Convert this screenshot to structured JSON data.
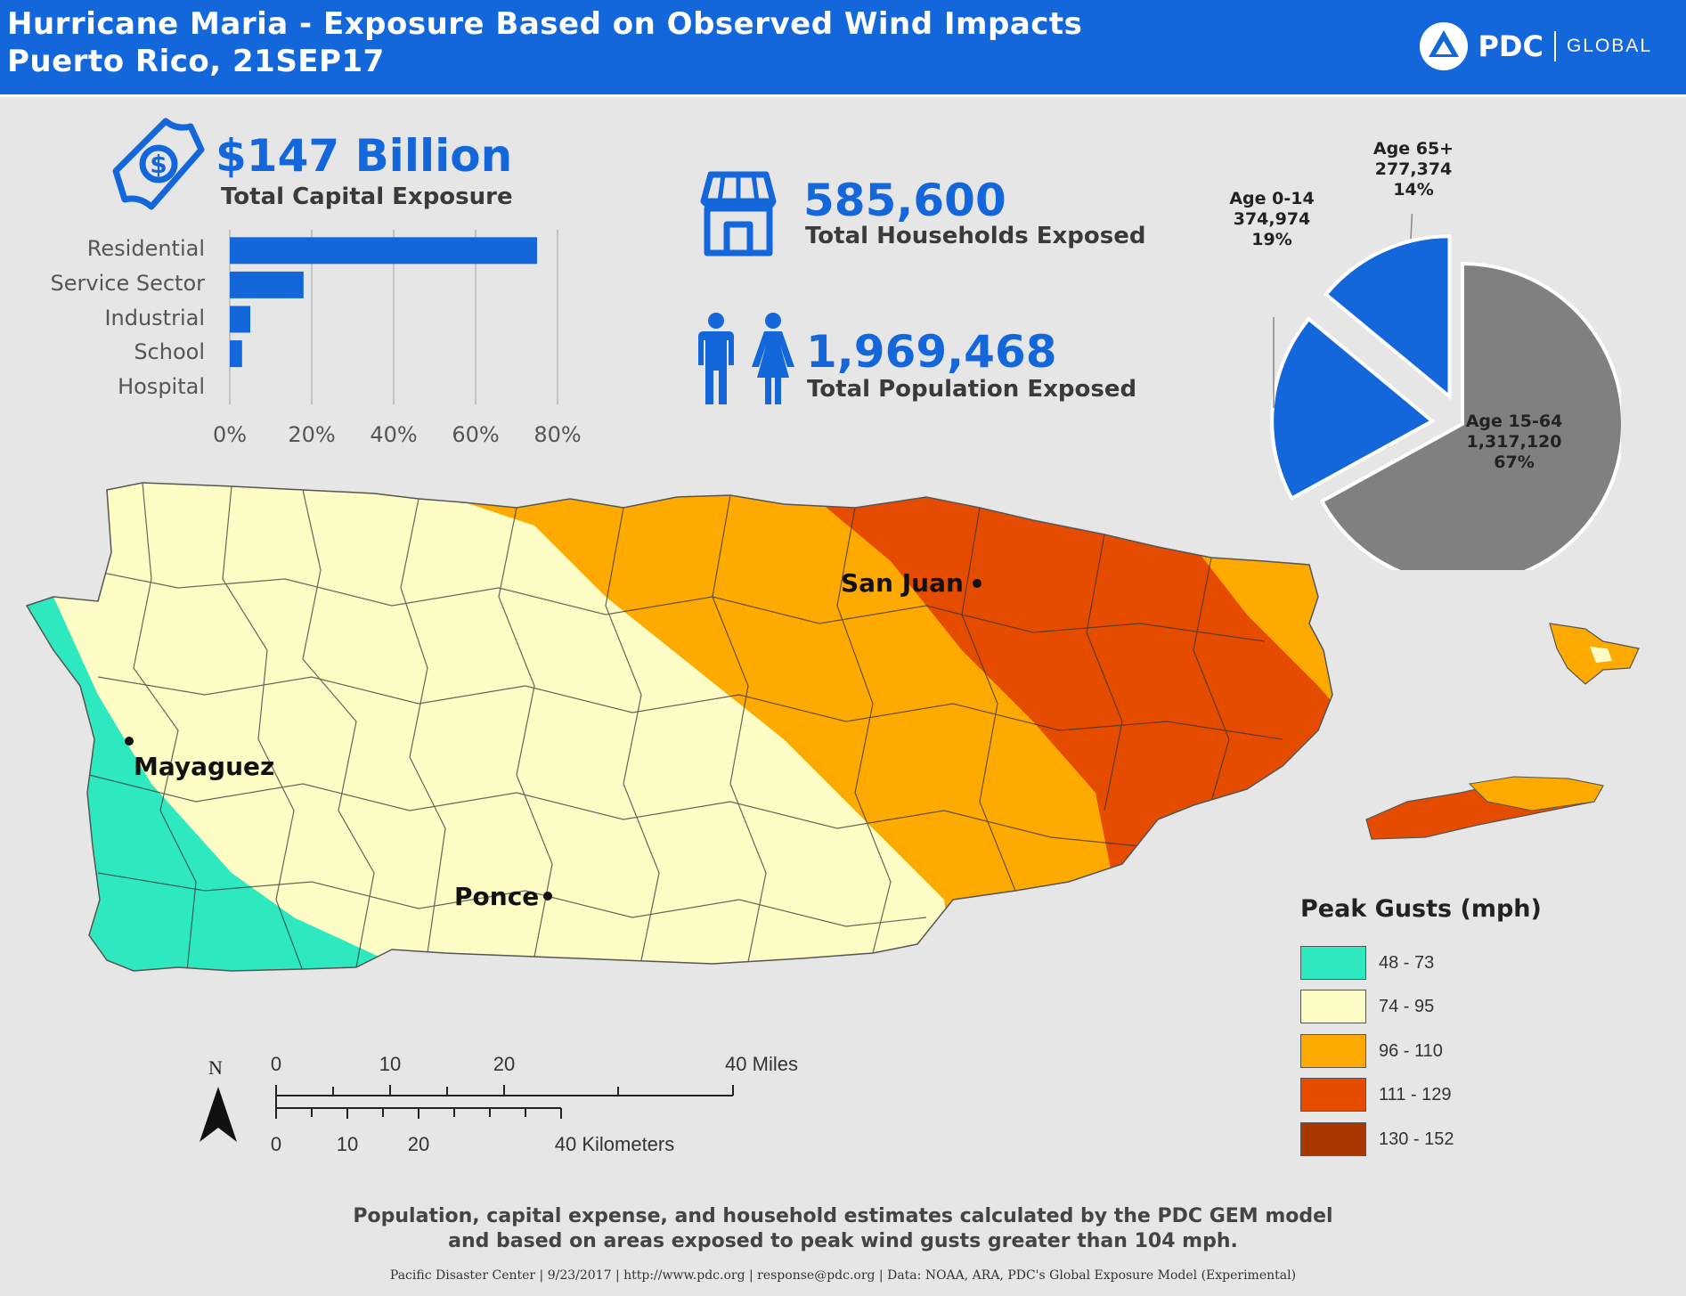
{
  "header": {
    "title_line1": "Hurricane Maria - Exposure Based on Observed Wind Impacts",
    "title_line2": "Puerto Rico, 21SEP17",
    "logo_pdc": "PDC",
    "logo_global": "GLOBAL",
    "background": "#1367db"
  },
  "capital": {
    "value": "$147 Billion",
    "label": "Total Capital Exposure",
    "icon": "money-bill-icon"
  },
  "households": {
    "value": "585,600",
    "label": "Total Households Exposed",
    "icon": "store-icon"
  },
  "population": {
    "value": "1,969,468",
    "label": "Total Population Exposed",
    "icon": "people-icon"
  },
  "chart_data": [
    {
      "type": "bar",
      "orientation": "horizontal",
      "categories": [
        "Residential",
        "Service Sector",
        "Industrial",
        "School",
        "Hospital"
      ],
      "values": [
        75,
        18,
        5,
        3,
        0
      ],
      "unit": "%",
      "xlim": [
        0,
        80
      ],
      "xticks": [
        "0%",
        "20%",
        "40%",
        "60%",
        "80%"
      ],
      "grid": true,
      "color": "#1367db"
    },
    {
      "type": "pie",
      "slices": [
        {
          "label": "Age 65+",
          "value": "277,374",
          "percent": "14%",
          "share": 14,
          "color": "#1367db",
          "exploded": true
        },
        {
          "label": "Age 0-14",
          "value": "374,974",
          "percent": "19%",
          "share": 19,
          "color": "#1367db",
          "exploded": true
        },
        {
          "label": "Age 15-64",
          "value": "1,317,120",
          "percent": "67%",
          "share": 67,
          "color": "#808080",
          "exploded": false
        }
      ]
    }
  ],
  "map": {
    "cities": [
      {
        "name": "San Juan"
      },
      {
        "name": "Mayaguez"
      },
      {
        "name": "Ponce"
      }
    ],
    "colors": {
      "band_48_73": "#2ee8c0",
      "band_74_95": "#fffdc6",
      "band_96_110": "#ffaa00",
      "band_111_129": "#e64c00",
      "band_130_152": "#a83800"
    }
  },
  "legend": {
    "title": "Peak Gusts (mph)",
    "items": [
      {
        "label": "48 - 73",
        "color": "#2ee8c0"
      },
      {
        "label": "74 - 95",
        "color": "#fffdc6"
      },
      {
        "label": "96 - 110",
        "color": "#ffaa00"
      },
      {
        "label": "111 - 129",
        "color": "#e64c00"
      },
      {
        "label": "130 - 152",
        "color": "#a83800"
      }
    ]
  },
  "scale": {
    "north": "N",
    "miles": [
      "0",
      "10",
      "20",
      "40 Miles"
    ],
    "km": [
      "0",
      "10",
      "20",
      "40 Kilometers"
    ]
  },
  "footer": {
    "note_line1": "Population, capital expense, and household estimates calculated by the PDC GEM model",
    "note_line2": "and based on areas exposed to peak wind gusts greater than 104 mph.",
    "credits": "Pacific Disaster Center | 9/23/2017 | http://www.pdc.org | response@pdc.org | Data: NOAA, ARA, PDC's Global Exposure Model (Experimental)"
  }
}
